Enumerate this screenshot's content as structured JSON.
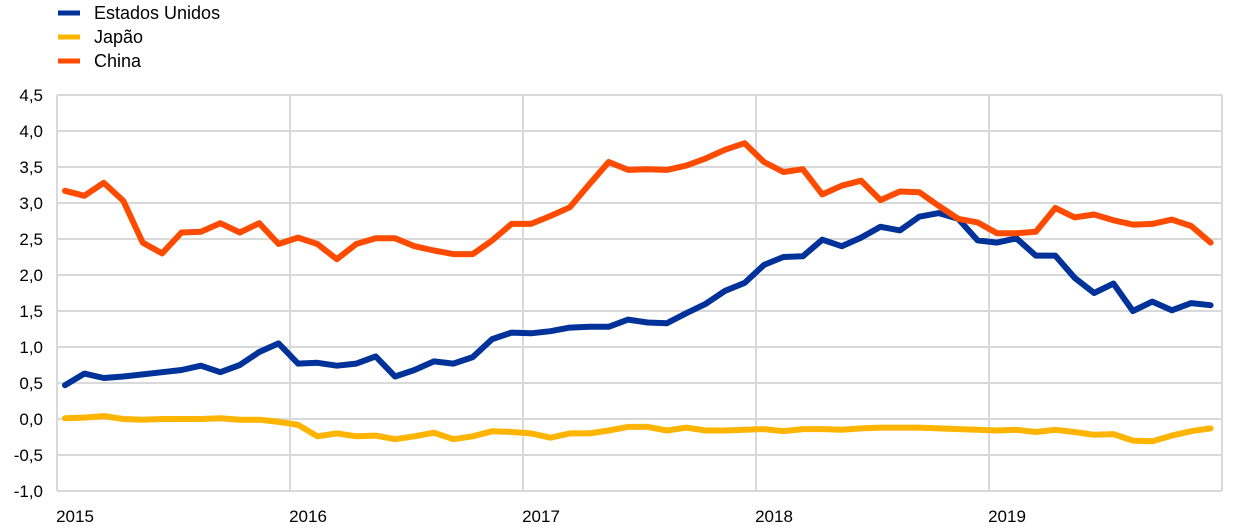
{
  "chart_data": {
    "type": "line",
    "title": "",
    "xlabel": "",
    "ylabel": "",
    "ylim": [
      -1.0,
      4.5
    ],
    "y_ticks": [
      "4,5",
      "4,0",
      "3,5",
      "3,0",
      "2,5",
      "2,0",
      "1,5",
      "1,0",
      "0,5",
      "0,0",
      "-0,5",
      "-1,0"
    ],
    "y_tick_values": [
      4.5,
      4.0,
      3.5,
      3.0,
      2.5,
      2.0,
      1.5,
      1.0,
      0.5,
      0.0,
      -0.5,
      -1.0
    ],
    "x_ticks": [
      "2015",
      "2016",
      "2017",
      "2018",
      "2019"
    ],
    "x_start": "2015-01",
    "x_frequency": "monthly",
    "grid": true,
    "legend_position": "top-left",
    "series": [
      {
        "name": "Estados Unidos",
        "color": "#003299",
        "values": [
          0.47,
          0.63,
          0.57,
          0.59,
          0.62,
          0.65,
          0.68,
          0.74,
          0.65,
          0.75,
          0.93,
          1.05,
          0.77,
          0.78,
          0.74,
          0.77,
          0.87,
          0.59,
          0.68,
          0.8,
          0.77,
          0.86,
          1.11,
          1.2,
          1.19,
          1.22,
          1.27,
          1.28,
          1.28,
          1.38,
          1.34,
          1.33,
          1.47,
          1.6,
          1.78,
          1.89,
          2.14,
          2.25,
          2.26,
          2.49,
          2.4,
          2.52,
          2.67,
          2.62,
          2.81,
          2.86,
          2.78,
          2.48,
          2.45,
          2.51,
          2.27,
          2.27,
          1.96,
          1.75,
          1.88,
          1.5,
          1.63,
          1.51,
          1.61,
          1.58
        ]
      },
      {
        "name": "Japão",
        "color": "#FFB400",
        "values": [
          0.01,
          0.02,
          0.04,
          0.0,
          -0.01,
          0.0,
          0.0,
          0.0,
          0.01,
          -0.01,
          -0.01,
          -0.04,
          -0.08,
          -0.24,
          -0.2,
          -0.24,
          -0.23,
          -0.28,
          -0.24,
          -0.19,
          -0.28,
          -0.24,
          -0.17,
          -0.18,
          -0.2,
          -0.26,
          -0.2,
          -0.2,
          -0.16,
          -0.11,
          -0.11,
          -0.16,
          -0.12,
          -0.16,
          -0.16,
          -0.15,
          -0.14,
          -0.17,
          -0.14,
          -0.14,
          -0.15,
          -0.13,
          -0.12,
          -0.12,
          -0.12,
          -0.13,
          -0.14,
          -0.15,
          -0.16,
          -0.15,
          -0.18,
          -0.15,
          -0.18,
          -0.22,
          -0.21,
          -0.3,
          -0.31,
          -0.23,
          -0.17,
          -0.13
        ]
      },
      {
        "name": "China",
        "color": "#FF4B00",
        "values": [
          3.17,
          3.1,
          3.28,
          3.03,
          2.45,
          2.3,
          2.59,
          2.6,
          2.72,
          2.59,
          2.72,
          2.43,
          2.52,
          2.43,
          2.22,
          2.43,
          2.51,
          2.51,
          2.4,
          2.34,
          2.29,
          2.29,
          2.48,
          2.71,
          2.71,
          2.82,
          2.94,
          3.26,
          3.57,
          3.46,
          3.47,
          3.46,
          3.52,
          3.62,
          3.74,
          3.83,
          3.57,
          3.43,
          3.47,
          3.12,
          3.24,
          3.31,
          3.04,
          3.16,
          3.15,
          2.96,
          2.78,
          2.73,
          2.58,
          2.58,
          2.6,
          2.93,
          2.8,
          2.84,
          2.76,
          2.7,
          2.71,
          2.77,
          2.68,
          2.45
        ]
      }
    ]
  }
}
